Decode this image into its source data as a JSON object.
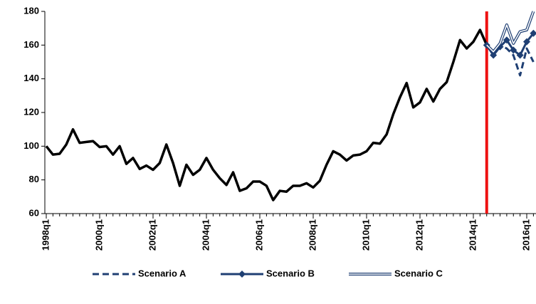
{
  "chart_data": {
    "type": "line",
    "categories": [
      "1998q1",
      null,
      null,
      null,
      null,
      null,
      null,
      null,
      "2000q1",
      null,
      null,
      null,
      null,
      null,
      null,
      null,
      "2002q1",
      null,
      null,
      null,
      null,
      null,
      null,
      null,
      "2004q1",
      null,
      null,
      null,
      null,
      null,
      null,
      null,
      "2006q1",
      null,
      null,
      null,
      null,
      null,
      null,
      null,
      "2008q1",
      null,
      null,
      null,
      null,
      null,
      null,
      null,
      "2010q1",
      null,
      null,
      null,
      null,
      null,
      null,
      null,
      "2012q1",
      null,
      null,
      null,
      null,
      null,
      null,
      null,
      "2014q1",
      null,
      null,
      null,
      null,
      null,
      null,
      null,
      "2016q1",
      null
    ],
    "series": [
      {
        "color": "#000000",
        "style": "solid",
        "values": [
          100,
          95,
          95.5,
          101,
          110,
          102,
          102.5,
          103,
          99.5,
          100,
          95,
          100,
          89.5,
          93,
          86.5,
          88.5,
          86,
          90,
          101,
          90,
          76.5,
          89,
          83,
          86,
          93,
          86,
          81,
          77,
          84.5,
          73.5,
          75,
          79,
          79,
          76.5,
          68,
          73.5,
          73,
          76.5,
          76.5,
          78,
          75.5,
          79.5,
          89,
          97,
          95,
          91.5,
          94.5,
          95,
          97,
          102,
          101.5,
          107,
          119,
          129,
          137.5,
          123,
          126,
          134,
          126.5,
          134,
          138,
          150,
          163,
          158,
          162,
          169,
          160,
          null,
          null,
          null,
          null,
          null,
          null,
          null
        ]
      },
      {
        "name": "Scenario A",
        "color": "#1f3f73",
        "style": "dashed",
        "values": [
          null,
          null,
          null,
          null,
          null,
          null,
          null,
          null,
          null,
          null,
          null,
          null,
          null,
          null,
          null,
          null,
          null,
          null,
          null,
          null,
          null,
          null,
          null,
          null,
          null,
          null,
          null,
          null,
          null,
          null,
          null,
          null,
          null,
          null,
          null,
          null,
          null,
          null,
          null,
          null,
          null,
          null,
          null,
          null,
          null,
          null,
          null,
          null,
          null,
          null,
          null,
          null,
          null,
          null,
          null,
          null,
          null,
          null,
          null,
          null,
          null,
          null,
          null,
          null,
          null,
          null,
          160,
          154,
          160,
          158,
          154,
          142,
          158,
          150
        ]
      },
      {
        "name": "Scenario B",
        "color": "#1f3f73",
        "style": "diamond",
        "values": [
          null,
          null,
          null,
          null,
          null,
          null,
          null,
          null,
          null,
          null,
          null,
          null,
          null,
          null,
          null,
          null,
          null,
          null,
          null,
          null,
          null,
          null,
          null,
          null,
          null,
          null,
          null,
          null,
          null,
          null,
          null,
          null,
          null,
          null,
          null,
          null,
          null,
          null,
          null,
          null,
          null,
          null,
          null,
          null,
          null,
          null,
          null,
          null,
          null,
          null,
          null,
          null,
          null,
          null,
          null,
          null,
          null,
          null,
          null,
          null,
          null,
          null,
          null,
          null,
          null,
          null,
          160,
          154,
          159,
          163,
          157,
          154,
          162,
          167
        ]
      },
      {
        "name": "Scenario C",
        "color": "#1f3f73",
        "style": "double",
        "values": [
          null,
          null,
          null,
          null,
          null,
          null,
          null,
          null,
          null,
          null,
          null,
          null,
          null,
          null,
          null,
          null,
          null,
          null,
          null,
          null,
          null,
          null,
          null,
          null,
          null,
          null,
          null,
          null,
          null,
          null,
          null,
          null,
          null,
          null,
          null,
          null,
          null,
          null,
          null,
          null,
          null,
          null,
          null,
          null,
          null,
          null,
          null,
          null,
          null,
          null,
          null,
          null,
          null,
          null,
          null,
          null,
          null,
          null,
          null,
          null,
          null,
          null,
          null,
          null,
          null,
          null,
          160,
          156,
          161,
          172,
          161,
          168,
          169,
          180
        ]
      }
    ],
    "ylim": [
      60,
      180
    ],
    "yticks": [
      60,
      80,
      100,
      120,
      140,
      160,
      180
    ],
    "marker_line": {
      "index": 66,
      "color": "#ee1111"
    },
    "legend": "bottom"
  }
}
